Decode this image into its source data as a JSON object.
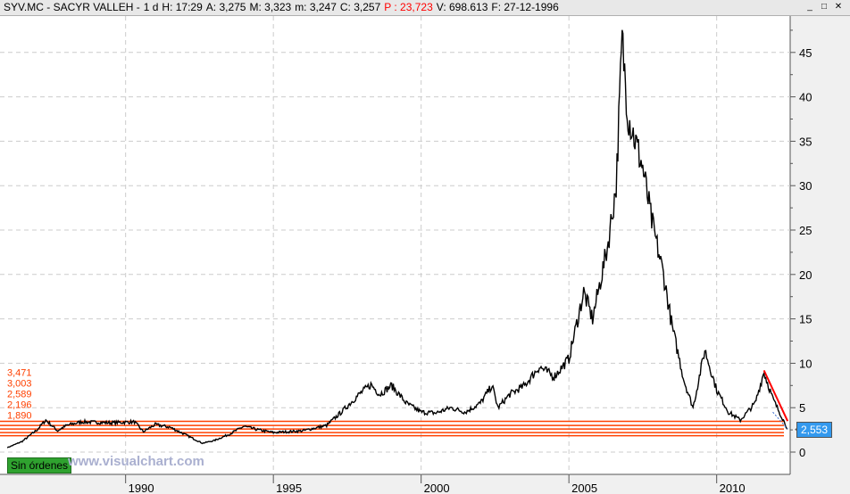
{
  "header": {
    "symbol": "SYV.MC - SACYR VALLEH -",
    "interval": "1 d",
    "hora": "H: 17:29",
    "apertura": "A: 3,275",
    "maximo": "M: 3,323",
    "minimo": "m: 3,247",
    "cierre": "C: 3,257",
    "precio": "P : 23,723",
    "volumen": "V: 698.613",
    "fecha": "F: 27-12-1996"
  },
  "window_buttons": {
    "minimize": "_",
    "maximize": "□",
    "close": "✕"
  },
  "orders_badge": "Sin órdenes",
  "watermark": "www.visualchart.com",
  "last_price": "2,553",
  "colors": {
    "line": "#000000",
    "levels": "#ff4000",
    "trend": "#ff0000",
    "price_box": "#3399ee",
    "badge": "#2fa22f"
  },
  "chart_data": {
    "type": "line",
    "title": "SYV.MC - SACYR VALLEH",
    "x_ticks": [
      "1990",
      "1995",
      "2000",
      "2005",
      "2010"
    ],
    "y_ticks": [
      "0",
      "5",
      "10",
      "15",
      "20",
      "25",
      "30",
      "35",
      "40",
      "45"
    ],
    "xlim": [
      1985.75,
      2012.6
    ],
    "ylim": [
      -2,
      48
    ],
    "grid": true,
    "series": [
      {
        "name": "SYV.MC",
        "points": [
          [
            1986.0,
            0.5
          ],
          [
            1986.5,
            1.2
          ],
          [
            1987.0,
            2.5
          ],
          [
            1987.3,
            3.6
          ],
          [
            1987.7,
            2.4
          ],
          [
            1988.0,
            3.0
          ],
          [
            1988.5,
            3.4
          ],
          [
            1989.5,
            3.3
          ],
          [
            1990.3,
            3.4
          ],
          [
            1990.6,
            2.3
          ],
          [
            1991.0,
            3.1
          ],
          [
            1991.5,
            2.8
          ],
          [
            1992.0,
            2.0
          ],
          [
            1992.6,
            1.0
          ],
          [
            1993.0,
            1.3
          ],
          [
            1993.5,
            2.0
          ],
          [
            1994.0,
            2.9
          ],
          [
            1994.5,
            2.5
          ],
          [
            1995.0,
            2.2
          ],
          [
            1995.5,
            2.3
          ],
          [
            1996.0,
            2.4
          ],
          [
            1996.8,
            3.0
          ],
          [
            1997.3,
            4.5
          ],
          [
            1997.9,
            6.5
          ],
          [
            1998.3,
            7.6
          ],
          [
            1998.6,
            6.5
          ],
          [
            1999.0,
            7.5
          ],
          [
            1999.5,
            5.5
          ],
          [
            2000.0,
            4.5
          ],
          [
            2000.5,
            4.4
          ],
          [
            2001.0,
            5.0
          ],
          [
            2001.5,
            4.5
          ],
          [
            2002.0,
            5.5
          ],
          [
            2002.4,
            7.5
          ],
          [
            2002.6,
            5.0
          ],
          [
            2003.0,
            6.5
          ],
          [
            2003.5,
            7.5
          ],
          [
            2004.0,
            9.6
          ],
          [
            2004.5,
            8.5
          ],
          [
            2005.0,
            10.5
          ],
          [
            2005.5,
            18.0
          ],
          [
            2005.8,
            15.0
          ],
          [
            2006.3,
            23.0
          ],
          [
            2006.6,
            30.0
          ],
          [
            2006.8,
            46.5
          ],
          [
            2007.0,
            38.0
          ],
          [
            2007.5,
            32.0
          ],
          [
            2007.8,
            26.0
          ],
          [
            2008.2,
            20.0
          ],
          [
            2008.5,
            14.0
          ],
          [
            2008.9,
            8.0
          ],
          [
            2009.2,
            5.0
          ],
          [
            2009.6,
            11.5
          ],
          [
            2010.0,
            7.0
          ],
          [
            2010.4,
            4.5
          ],
          [
            2010.8,
            3.6
          ],
          [
            2011.3,
            5.5
          ],
          [
            2011.6,
            9.0
          ],
          [
            2011.9,
            6.0
          ],
          [
            2012.2,
            4.0
          ],
          [
            2012.4,
            2.6
          ]
        ]
      }
    ],
    "levels": [
      {
        "label": "3,471",
        "value": 3.47
      },
      {
        "label": "3,003",
        "value": 3.0
      },
      {
        "label": "2,589",
        "value": 2.6
      },
      {
        "label": "2,196",
        "value": 2.2
      },
      {
        "label": "1,890",
        "value": 1.85
      }
    ],
    "trendline": [
      [
        2011.6,
        9.2
      ],
      [
        2012.4,
        3.5
      ]
    ],
    "dotted_line": [
      [
        2011.9,
        4.5
      ],
      [
        2012.4,
        2.6
      ]
    ]
  }
}
